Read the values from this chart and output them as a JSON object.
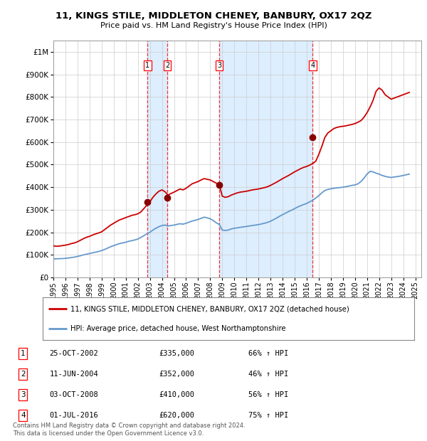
{
  "title": "11, KINGS STILE, MIDDLETON CHENEY, BANBURY, OX17 2QZ",
  "subtitle": "Price paid vs. HM Land Registry's House Price Index (HPI)",
  "xlim": [
    1995.0,
    2025.5
  ],
  "ylim": [
    0,
    1050000
  ],
  "yticks": [
    0,
    100000,
    200000,
    300000,
    400000,
    500000,
    600000,
    700000,
    800000,
    900000,
    1000000
  ],
  "ytick_labels": [
    "£0",
    "£100K",
    "£200K",
    "£300K",
    "£400K",
    "£500K",
    "£600K",
    "£700K",
    "£800K",
    "£900K",
    "£1M"
  ],
  "xticks": [
    1995,
    1996,
    1997,
    1998,
    1999,
    2000,
    2001,
    2002,
    2003,
    2004,
    2005,
    2006,
    2007,
    2008,
    2009,
    2010,
    2011,
    2012,
    2013,
    2014,
    2015,
    2016,
    2017,
    2018,
    2019,
    2020,
    2021,
    2022,
    2023,
    2024,
    2025
  ],
  "property_color": "#cc0000",
  "hpi_color": "#6699cc",
  "sale_dot_color": "#880000",
  "vline_color": "#ee3333",
  "shade_color": "#ddeeff",
  "background_color": "#ffffff",
  "grid_color": "#cccccc",
  "sales": [
    {
      "num": 1,
      "year": 2002.81,
      "price": 335000
    },
    {
      "num": 2,
      "year": 2004.44,
      "price": 352000
    },
    {
      "num": 3,
      "year": 2008.75,
      "price": 410000
    },
    {
      "num": 4,
      "year": 2016.5,
      "price": 620000
    }
  ],
  "sale_labels": [
    {
      "num": 1,
      "date": "25-OCT-2002",
      "price": "£335,000",
      "hpi": "66% ↑ HPI"
    },
    {
      "num": 2,
      "date": "11-JUN-2004",
      "price": "£352,000",
      "hpi": "46% ↑ HPI"
    },
    {
      "num": 3,
      "date": "03-OCT-2008",
      "price": "£410,000",
      "hpi": "56% ↑ HPI"
    },
    {
      "num": 4,
      "date": "01-JUL-2016",
      "price": "£620,000",
      "hpi": "75% ↑ HPI"
    }
  ],
  "legend_line1": "11, KINGS STILE, MIDDLETON CHENEY, BANBURY, OX17 2QZ (detached house)",
  "legend_line2": "HPI: Average price, detached house, West Northamptonshire",
  "footnote": "Contains HM Land Registry data © Crown copyright and database right 2024.\nThis data is licensed under the Open Government Licence v3.0.",
  "property_hpi_data": {
    "years": [
      1995.0,
      1995.25,
      1995.5,
      1995.75,
      1996.0,
      1996.25,
      1996.5,
      1996.75,
      1997.0,
      1997.25,
      1997.5,
      1997.75,
      1998.0,
      1998.25,
      1998.5,
      1998.75,
      1999.0,
      1999.25,
      1999.5,
      1999.75,
      2000.0,
      2000.25,
      2000.5,
      2000.75,
      2001.0,
      2001.25,
      2001.5,
      2001.75,
      2002.0,
      2002.25,
      2002.5,
      2002.75,
      2003.0,
      2003.25,
      2003.5,
      2003.75,
      2004.0,
      2004.25,
      2004.5,
      2004.75,
      2005.0,
      2005.25,
      2005.5,
      2005.75,
      2006.0,
      2006.25,
      2006.5,
      2006.75,
      2007.0,
      2007.25,
      2007.5,
      2007.75,
      2008.0,
      2008.25,
      2008.5,
      2008.75,
      2009.0,
      2009.25,
      2009.5,
      2009.75,
      2010.0,
      2010.25,
      2010.5,
      2010.75,
      2011.0,
      2011.25,
      2011.5,
      2011.75,
      2012.0,
      2012.25,
      2012.5,
      2012.75,
      2013.0,
      2013.25,
      2013.5,
      2013.75,
      2014.0,
      2014.25,
      2014.5,
      2014.75,
      2015.0,
      2015.25,
      2015.5,
      2015.75,
      2016.0,
      2016.25,
      2016.5,
      2016.75,
      2017.0,
      2017.25,
      2017.5,
      2017.75,
      2018.0,
      2018.25,
      2018.5,
      2018.75,
      2019.0,
      2019.25,
      2019.5,
      2019.75,
      2020.0,
      2020.25,
      2020.5,
      2020.75,
      2021.0,
      2021.25,
      2021.5,
      2021.75,
      2022.0,
      2022.25,
      2022.5,
      2022.75,
      2023.0,
      2023.25,
      2023.5,
      2023.75,
      2024.0,
      2024.25,
      2024.5
    ],
    "property_values": [
      140000,
      138000,
      139000,
      141000,
      143000,
      146000,
      150000,
      153000,
      158000,
      165000,
      172000,
      178000,
      182000,
      188000,
      193000,
      197000,
      202000,
      212000,
      222000,
      232000,
      240000,
      248000,
      255000,
      260000,
      265000,
      270000,
      275000,
      278000,
      282000,
      290000,
      305000,
      320000,
      335000,
      355000,
      370000,
      382000,
      388000,
      380000,
      365000,
      372000,
      378000,
      385000,
      392000,
      388000,
      395000,
      405000,
      415000,
      420000,
      425000,
      432000,
      438000,
      435000,
      432000,
      425000,
      418000,
      412000,
      360000,
      355000,
      358000,
      365000,
      370000,
      375000,
      378000,
      380000,
      382000,
      385000,
      388000,
      390000,
      392000,
      395000,
      398000,
      402000,
      408000,
      415000,
      422000,
      430000,
      438000,
      445000,
      452000,
      460000,
      468000,
      475000,
      482000,
      488000,
      492000,
      498000,
      505000,
      515000,
      545000,
      580000,
      620000,
      640000,
      650000,
      660000,
      665000,
      668000,
      670000,
      672000,
      675000,
      678000,
      682000,
      688000,
      695000,
      710000,
      730000,
      755000,
      785000,
      825000,
      840000,
      830000,
      810000,
      800000,
      790000,
      795000,
      800000,
      805000,
      810000,
      815000,
      820000
    ],
    "hpi_values": [
      82000,
      82500,
      83000,
      83500,
      84500,
      86000,
      88000,
      90000,
      93000,
      96000,
      100000,
      103000,
      106000,
      109000,
      112000,
      115000,
      119000,
      124000,
      130000,
      136000,
      141000,
      146000,
      150000,
      153000,
      156000,
      160000,
      163000,
      166000,
      170000,
      177000,
      185000,
      193000,
      200000,
      210000,
      218000,
      225000,
      230000,
      232000,
      228000,
      230000,
      232000,
      235000,
      238000,
      236000,
      240000,
      245000,
      250000,
      253000,
      257000,
      262000,
      267000,
      264000,
      260000,
      252000,
      242000,
      235000,
      210000,
      208000,
      210000,
      215000,
      218000,
      220000,
      222000,
      224000,
      226000,
      228000,
      230000,
      232000,
      234000,
      237000,
      240000,
      244000,
      249000,
      256000,
      263000,
      271000,
      278000,
      285000,
      292000,
      298000,
      305000,
      312000,
      318000,
      323000,
      328000,
      335000,
      342000,
      352000,
      362000,
      375000,
      385000,
      390000,
      393000,
      395000,
      397000,
      398000,
      400000,
      402000,
      405000,
      408000,
      410000,
      415000,
      425000,
      440000,
      458000,
      470000,
      468000,
      462000,
      458000,
      452000,
      448000,
      445000,
      443000,
      445000,
      447000,
      449000,
      452000,
      455000,
      458000
    ]
  }
}
